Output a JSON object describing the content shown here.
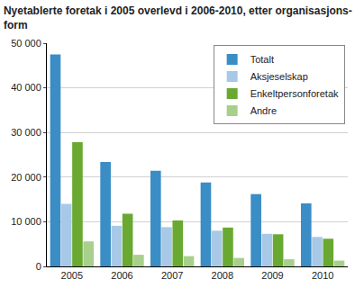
{
  "chart_data": {
    "type": "bar",
    "title": "Nyetablerte foretak i 2005 overlevd i 2006-2010, etter organisasjons-\nform",
    "categories": [
      "2005",
      "2006",
      "2007",
      "2008",
      "2009",
      "2010"
    ],
    "series": [
      {
        "name": "Totalt",
        "color": "#3a8dc5",
        "values": [
          47500,
          23400,
          21400,
          18800,
          16200,
          14100
        ]
      },
      {
        "name": "Aksjeselskap",
        "color": "#a7c9e7",
        "values": [
          14000,
          9100,
          8800,
          8000,
          7300,
          6600
        ]
      },
      {
        "name": "Enkeltpersonforetak",
        "color": "#69a932",
        "values": [
          27800,
          11800,
          10300,
          8700,
          7200,
          6200
        ]
      },
      {
        "name": "Andre",
        "color": "#a8d08d",
        "values": [
          5600,
          2600,
          2300,
          1900,
          1600,
          1300
        ]
      }
    ],
    "ylim": [
      0,
      50000
    ],
    "yticks": [
      0,
      {
        "value": 10000,
        "label": "10 000"
      },
      {
        "value": 20000,
        "label": "20 000"
      },
      {
        "value": 30000,
        "label": "30 000"
      },
      {
        "value": 40000,
        "label": "40 000"
      },
      {
        "value": 50000,
        "label": "50 000"
      }
    ],
    "grid": true,
    "legend": "top right"
  }
}
